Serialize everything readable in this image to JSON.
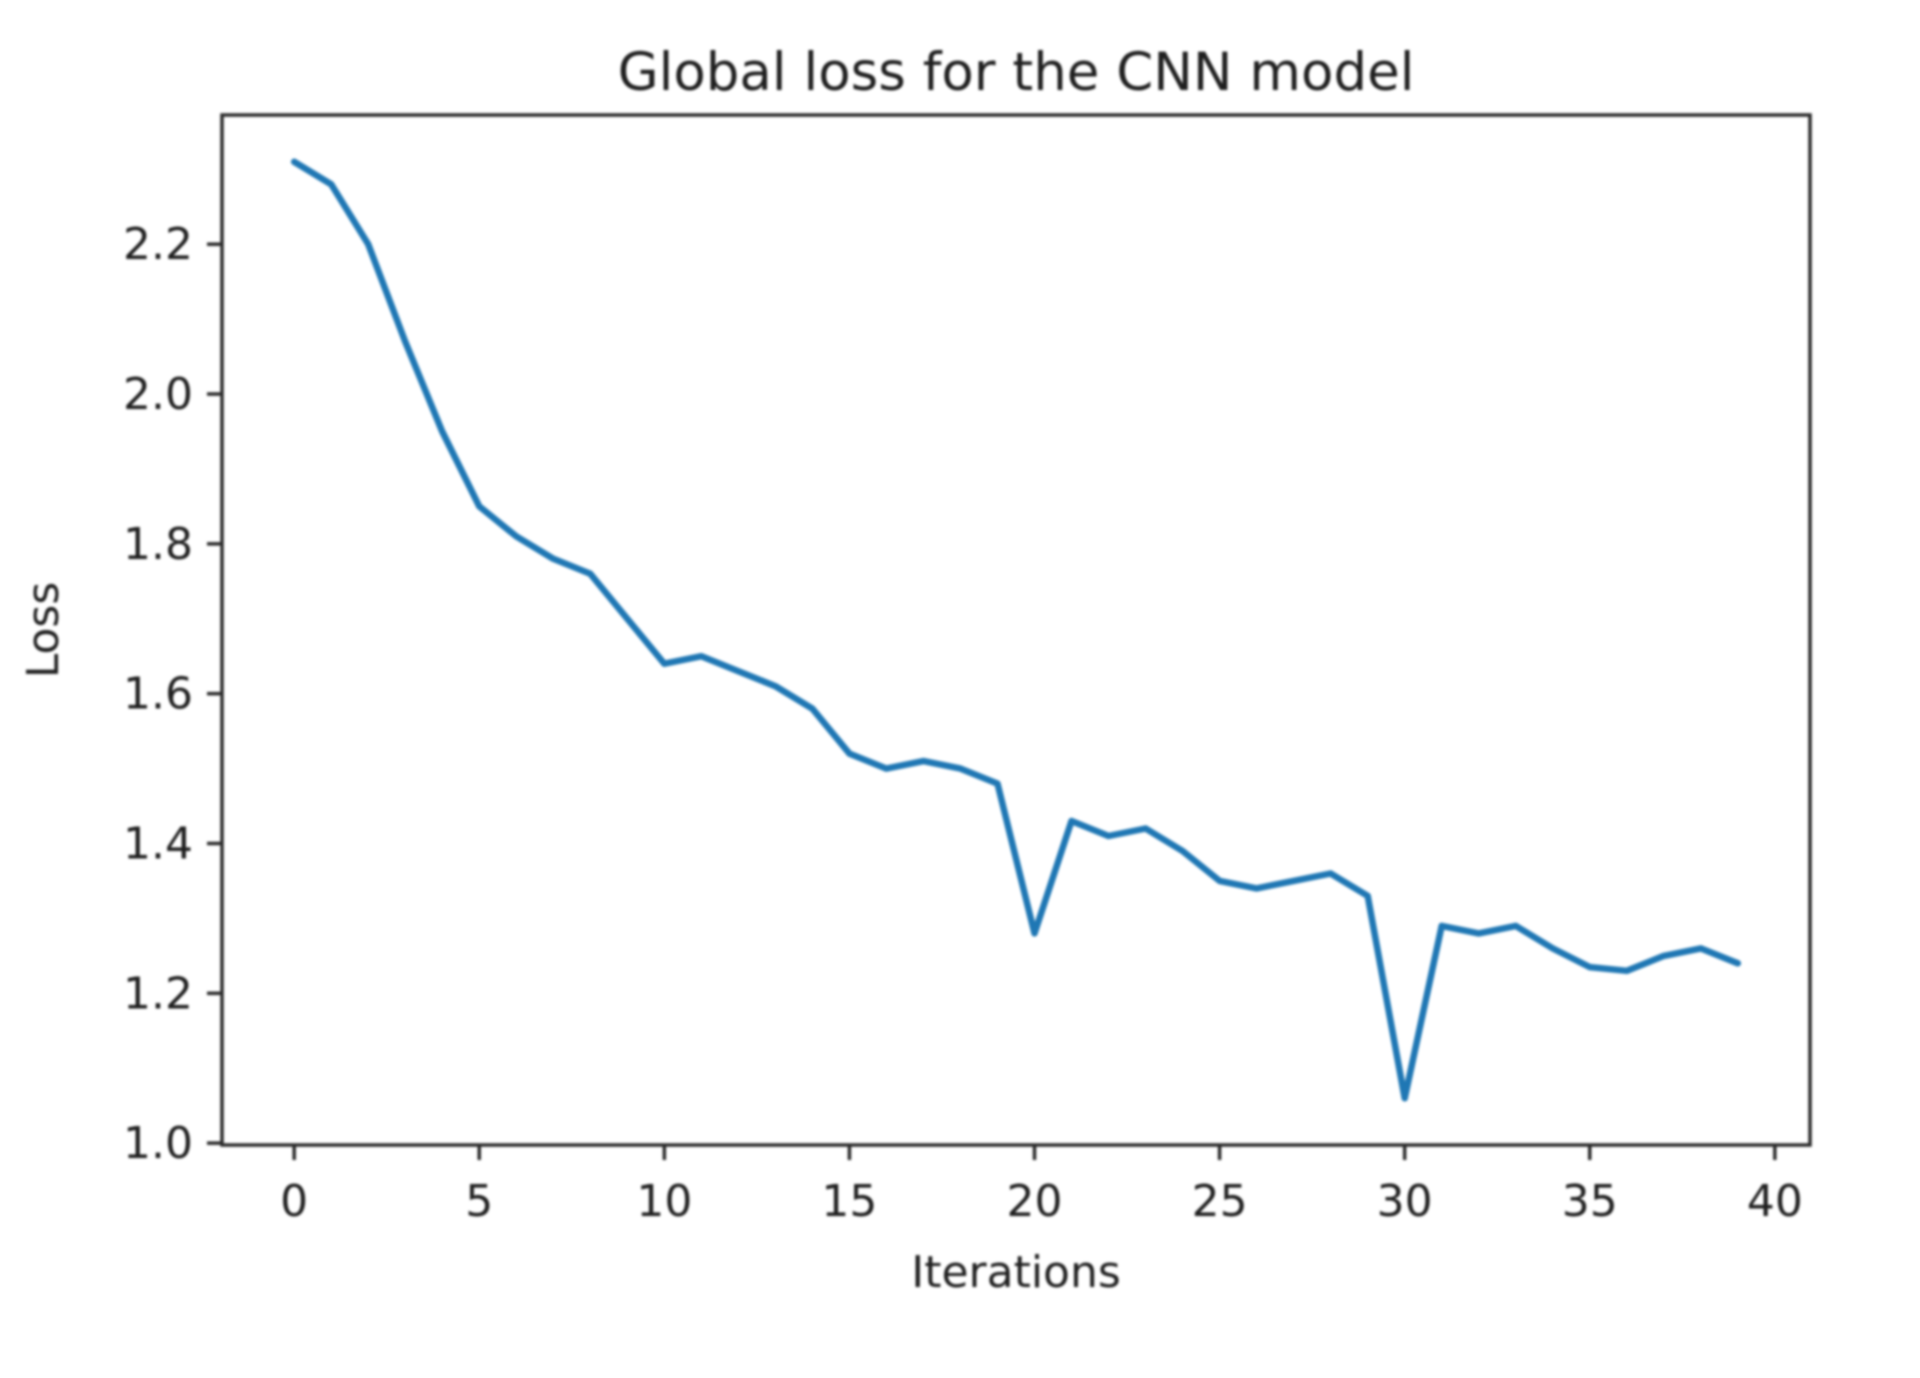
{
  "figure": {
    "background": "#ffffff",
    "text_color": "#1f1f1f",
    "spine_color": "#2a2a2a",
    "line_color": "#1f77b4"
  },
  "chart_data": {
    "type": "line",
    "title": "Global loss for the CNN model",
    "xlabel": "Iterations",
    "ylabel": "Loss",
    "grid": false,
    "legend_position": "none",
    "xlim": [
      -1.95,
      40.95
    ],
    "ylim": [
      0.9975,
      2.3725
    ],
    "x_ticks": {
      "values": [
        0,
        5,
        10,
        15,
        20,
        25,
        30,
        35,
        40
      ],
      "labels": [
        "0",
        "5",
        "10",
        "15",
        "20",
        "25",
        "30",
        "35",
        "40"
      ]
    },
    "y_ticks": {
      "values": [
        1.0,
        1.2,
        1.4,
        1.6,
        1.8,
        2.0,
        2.2
      ],
      "labels": [
        "1.0",
        "1.2",
        "1.4",
        "1.6",
        "1.8",
        "2.0",
        "2.2"
      ]
    },
    "x": [
      0,
      1,
      2,
      3,
      4,
      5,
      6,
      7,
      8,
      9,
      10,
      11,
      12,
      13,
      14,
      15,
      16,
      17,
      18,
      19,
      20,
      21,
      22,
      23,
      24,
      25,
      26,
      27,
      28,
      29,
      30,
      31,
      32,
      33,
      34,
      35,
      36,
      37,
      38,
      39
    ],
    "series": [
      {
        "name": "Global loss",
        "values": [
          2.31,
          2.28,
          2.2,
          2.07,
          1.95,
          1.85,
          1.81,
          1.78,
          1.76,
          1.7,
          1.64,
          1.65,
          1.63,
          1.61,
          1.58,
          1.52,
          1.5,
          1.51,
          1.5,
          1.48,
          1.28,
          1.43,
          1.41,
          1.42,
          1.39,
          1.35,
          1.34,
          1.35,
          1.36,
          1.33,
          1.06,
          1.29,
          1.28,
          1.29,
          1.26,
          1.235,
          1.23,
          1.25,
          1.26,
          1.24
        ]
      }
    ]
  }
}
